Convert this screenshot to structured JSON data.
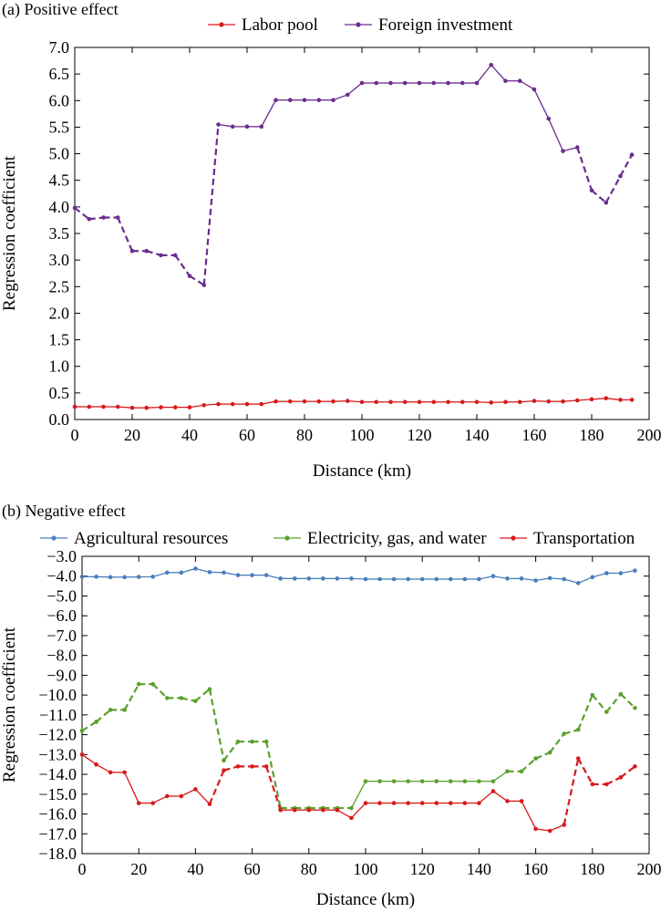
{
  "chart_data": [
    {
      "type": "line",
      "caption": "(a) Positive effect",
      "xlabel": "Distance (km)",
      "ylabel": "Regression coefficient",
      "xlim": [
        0,
        200
      ],
      "ylim": [
        0,
        7
      ],
      "xticks": [
        "0",
        "20",
        "40",
        "60",
        "80",
        "100",
        "120",
        "140",
        "160",
        "180",
        "200"
      ],
      "yticks": [
        "0.0",
        "0.5",
        "1.0",
        "1.5",
        "2.0",
        "2.5",
        "3.0",
        "3.5",
        "4.0",
        "4.5",
        "5.0",
        "5.5",
        "6.0",
        "6.5",
        "7.0"
      ],
      "legend_position": "top",
      "grid": false,
      "series": [
        {
          "name": "Labor pool",
          "color": "#d7191c",
          "x": [
            0,
            5,
            10,
            15,
            20,
            25,
            30,
            35,
            40,
            45,
            50,
            55,
            60,
            65,
            70,
            75,
            80,
            85,
            90,
            95,
            100,
            105,
            110,
            115,
            120,
            125,
            130,
            135,
            140,
            145,
            150,
            155,
            160,
            165,
            170,
            175,
            180,
            185,
            190,
            194
          ],
          "y": [
            0.24,
            0.24,
            0.24,
            0.24,
            0.22,
            0.22,
            0.23,
            0.23,
            0.23,
            0.27,
            0.29,
            0.29,
            0.29,
            0.29,
            0.34,
            0.34,
            0.34,
            0.34,
            0.34,
            0.35,
            0.33,
            0.33,
            0.33,
            0.33,
            0.33,
            0.33,
            0.33,
            0.33,
            0.33,
            0.32,
            0.33,
            0.33,
            0.35,
            0.34,
            0.34,
            0.36,
            0.38,
            0.4,
            0.37,
            0.37
          ],
          "dashed_segments": []
        },
        {
          "name": "Foreign investment",
          "color": "#6a2c8f",
          "x": [
            0,
            5,
            10,
            15,
            20,
            25,
            30,
            35,
            40,
            45,
            50,
            55,
            60,
            65,
            70,
            75,
            80,
            85,
            90,
            95,
            100,
            105,
            110,
            115,
            120,
            125,
            130,
            135,
            140,
            145,
            150,
            155,
            160,
            165,
            170,
            175,
            180,
            185,
            190,
            194
          ],
          "y": [
            3.98,
            3.77,
            3.8,
            3.8,
            3.17,
            3.17,
            3.09,
            3.09,
            2.7,
            2.53,
            5.55,
            5.51,
            5.51,
            5.51,
            6.01,
            6.01,
            6.01,
            6.01,
            6.01,
            6.11,
            6.33,
            6.33,
            6.33,
            6.33,
            6.33,
            6.33,
            6.33,
            6.33,
            6.33,
            6.67,
            6.37,
            6.37,
            6.21,
            5.66,
            5.05,
            5.12,
            4.31,
            4.08,
            4.58,
            4.98
          ],
          "dashed_segments": [
            0,
            1,
            2,
            3,
            4,
            5,
            6,
            7,
            8,
            9,
            35,
            36,
            37,
            38
          ]
        }
      ]
    },
    {
      "type": "line",
      "caption": "(b) Negative effect",
      "xlabel": "Distance (km)",
      "ylabel": "Regression coefficient",
      "xlim": [
        0,
        200
      ],
      "ylim": [
        -18,
        -3
      ],
      "xticks": [
        "0",
        "20",
        "40",
        "60",
        "80",
        "100",
        "120",
        "140",
        "160",
        "180",
        "200"
      ],
      "yticks": [
        "−18.0",
        "−17.0",
        "−16.0",
        "−15.0",
        "−14.0",
        "−13.0",
        "−12.0",
        "−11.0",
        "−10.0",
        "−9.0",
        "−8.0",
        "−7.0",
        "−6.0",
        "−5.0",
        "−4.0",
        "−3.0"
      ],
      "legend_position": "top",
      "grid": false,
      "series": [
        {
          "name": "Agricultural resources",
          "color": "#4a7ebb",
          "x": [
            0,
            5,
            10,
            15,
            20,
            25,
            30,
            35,
            40,
            45,
            50,
            55,
            60,
            65,
            70,
            75,
            80,
            85,
            90,
            95,
            100,
            105,
            110,
            115,
            120,
            125,
            130,
            135,
            140,
            145,
            150,
            155,
            160,
            165,
            170,
            175,
            180,
            185,
            190,
            195
          ],
          "y": [
            -4.03,
            -4.03,
            -4.05,
            -4.05,
            -4.04,
            -4.03,
            -3.82,
            -3.82,
            -3.62,
            -3.8,
            -3.82,
            -3.95,
            -3.95,
            -3.95,
            -4.12,
            -4.12,
            -4.12,
            -4.12,
            -4.12,
            -4.12,
            -4.15,
            -4.15,
            -4.15,
            -4.15,
            -4.15,
            -4.15,
            -4.15,
            -4.15,
            -4.15,
            -4.0,
            -4.12,
            -4.12,
            -4.22,
            -4.1,
            -4.15,
            -4.35,
            -4.05,
            -3.85,
            -3.85,
            -3.72
          ],
          "dashed_segments": []
        },
        {
          "name": "Electricity, gas, and water",
          "color": "#5aa02c",
          "x": [
            0,
            5,
            10,
            15,
            20,
            25,
            30,
            35,
            40,
            45,
            50,
            55,
            60,
            65,
            70,
            75,
            80,
            85,
            90,
            95,
            100,
            105,
            110,
            115,
            120,
            125,
            130,
            135,
            140,
            145,
            150,
            155,
            160,
            165,
            170,
            175,
            180,
            185,
            190,
            195
          ],
          "y": [
            -11.8,
            -11.35,
            -10.75,
            -10.75,
            -9.45,
            -9.45,
            -10.15,
            -10.15,
            -10.3,
            -9.7,
            -13.3,
            -12.35,
            -12.35,
            -12.35,
            -15.7,
            -15.7,
            -15.7,
            -15.7,
            -15.7,
            -15.7,
            -14.35,
            -14.35,
            -14.35,
            -14.35,
            -14.35,
            -14.35,
            -14.35,
            -14.35,
            -14.35,
            -14.35,
            -13.85,
            -13.85,
            -13.2,
            -12.9,
            -11.95,
            -11.75,
            -10.0,
            -10.85,
            -9.95,
            -10.65
          ],
          "dashed_segments": [
            0,
            1,
            2,
            3,
            4,
            5,
            6,
            7,
            8,
            9,
            10,
            11,
            12,
            13,
            14,
            15,
            16,
            17,
            18,
            30,
            31,
            32,
            33,
            34,
            35,
            36,
            37,
            38
          ]
        },
        {
          "name": "Transportation",
          "color": "#d7191c",
          "x": [
            0,
            5,
            10,
            15,
            20,
            25,
            30,
            35,
            40,
            45,
            50,
            55,
            60,
            65,
            70,
            75,
            80,
            85,
            90,
            95,
            100,
            105,
            110,
            115,
            120,
            125,
            130,
            135,
            140,
            145,
            150,
            155,
            160,
            165,
            170,
            175,
            180,
            185,
            190,
            195
          ],
          "y": [
            -13.0,
            -13.5,
            -13.9,
            -13.9,
            -15.45,
            -15.45,
            -15.1,
            -15.1,
            -14.75,
            -15.5,
            -13.8,
            -13.6,
            -13.6,
            -13.6,
            -15.8,
            -15.8,
            -15.8,
            -15.8,
            -15.8,
            -16.2,
            -15.45,
            -15.45,
            -15.45,
            -15.45,
            -15.45,
            -15.45,
            -15.45,
            -15.45,
            -15.45,
            -14.85,
            -15.35,
            -15.35,
            -16.75,
            -16.85,
            -16.55,
            -13.2,
            -14.5,
            -14.5,
            -14.15,
            -13.6
          ],
          "dashed_segments": [
            9,
            10,
            11,
            12,
            13,
            34,
            35,
            36,
            37,
            38
          ]
        }
      ]
    }
  ]
}
